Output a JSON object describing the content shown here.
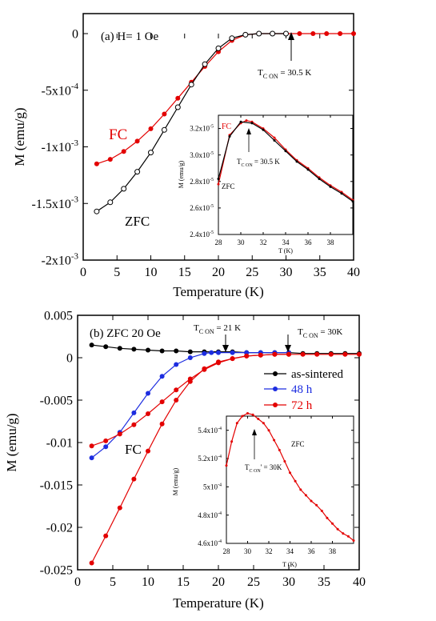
{
  "chart_data": [
    {
      "type": "line",
      "panel": "a",
      "title": "(a) H= 1 Oe",
      "xlabel": "Temperature (K)",
      "ylabel": "M (emu/g)",
      "xlim": [
        0,
        40
      ],
      "ylim": [
        -0.002,
        0
      ],
      "xticks": [
        "0",
        "5",
        "10",
        "15",
        "20",
        "25",
        "30",
        "35",
        "40"
      ],
      "yticks": [
        {
          "mant": "0",
          "exp": ""
        },
        {
          "mant": "-5x10",
          "exp": "-4"
        },
        {
          "mant": "-1x10",
          "exp": "-3"
        },
        {
          "mant": "-1.5x10",
          "exp": "-3"
        },
        {
          "mant": "-2x10",
          "exp": "-3"
        }
      ],
      "ytick_values": [
        0,
        -0.0005,
        -0.001,
        -0.0015,
        -0.002
      ],
      "annotations": {
        "tc": "T",
        "tc_sub": "C ON",
        "tc_val": " = 30.5 K",
        "fc": "FC",
        "zfc": "ZFC"
      },
      "series": [
        {
          "name": "FC",
          "color": "#e30000",
          "marker": "filled",
          "x": [
            2,
            4,
            6,
            8,
            10,
            12,
            14,
            16,
            18,
            20,
            22,
            24,
            26,
            28,
            30,
            32,
            34,
            36,
            38,
            40
          ],
          "y": [
            -0.00115,
            -0.00111,
            -0.00104,
            -0.00095,
            -0.00084,
            -0.00071,
            -0.00057,
            -0.00043,
            -0.00029,
            -0.00016,
            -6e-05,
            -1e-05,
            0,
            0,
            0,
            0,
            0,
            0,
            0,
            0
          ]
        },
        {
          "name": "ZFC",
          "color": "#000000",
          "marker": "open",
          "x": [
            2,
            4,
            6,
            8,
            10,
            12,
            14,
            16,
            18,
            20,
            22,
            24,
            26,
            28,
            30
          ],
          "y": [
            -0.00157,
            -0.00149,
            -0.00137,
            -0.00122,
            -0.00105,
            -0.00085,
            -0.00065,
            -0.00045,
            -0.00027,
            -0.00013,
            -4e-05,
            -1e-05,
            0,
            0,
            0
          ]
        }
      ],
      "inset": {
        "xlabel": "T (K)",
        "ylabel": "M (emu/g)",
        "xlim": [
          28,
          40
        ],
        "ylim": [
          2.4e-05,
          3.3e-05
        ],
        "xticks": [
          "28",
          "30",
          "32",
          "34",
          "36",
          "38"
        ],
        "yticks": [
          {
            "mant": "3.2x10",
            "exp": "-5"
          },
          {
            "mant": "3.0x10",
            "exp": "-5"
          },
          {
            "mant": "2.8x10",
            "exp": "-5"
          },
          {
            "mant": "2.6x10",
            "exp": "-5"
          },
          {
            "mant": "2.4x10",
            "exp": "-5"
          }
        ],
        "ytick_values": [
          3.2e-05,
          3e-05,
          2.8e-05,
          2.6e-05,
          2.4e-05
        ],
        "labels": {
          "fc": "FC",
          "zfc": "ZFC",
          "tc": "T",
          "tc_sub": "C ON",
          "tc_val": " = 30.5 K"
        },
        "series": [
          {
            "name": "FC",
            "color": "#e30000",
            "x": [
              28,
              29,
              30,
              30.5,
              31,
              32,
              33,
              34,
              35,
              36,
              37,
              38,
              39,
              40
            ],
            "y": [
              2.78e-05,
              3.15e-05,
              3.24e-05,
              3.26e-05,
              3.25e-05,
              3.2e-05,
              3.13e-05,
              3.04e-05,
              2.96e-05,
              2.9e-05,
              2.83e-05,
              2.77e-05,
              2.72e-05,
              2.66e-05
            ]
          },
          {
            "name": "ZFC",
            "color": "#000000",
            "x": [
              28,
              29,
              30,
              31,
              32,
              33,
              34,
              35,
              36,
              37,
              38,
              39,
              40
            ],
            "y": [
              2.82e-05,
              3.14e-05,
              3.25e-05,
              3.24e-05,
              3.19e-05,
              3.11e-05,
              3.03e-05,
              2.95e-05,
              2.89e-05,
              2.82e-05,
              2.76e-05,
              2.71e-05,
              2.65e-05
            ]
          }
        ]
      }
    },
    {
      "type": "line",
      "panel": "b",
      "title": "(b) ZFC 20 Oe",
      "xlabel": "Temperature (K)",
      "ylabel": "M (emu/g)",
      "xlim": [
        0,
        40
      ],
      "ylim": [
        -0.025,
        0.005
      ],
      "xticks": [
        "0",
        "5",
        "10",
        "15",
        "20",
        "25",
        "30",
        "35",
        "40"
      ],
      "yticks": [
        "0.005",
        "0",
        "-0.005",
        "-0.01",
        "-0.015",
        "-0.02",
        "-0.025"
      ],
      "ytick_values": [
        0.005,
        0,
        -0.005,
        -0.01,
        -0.015,
        -0.02,
        -0.025
      ],
      "annotations": {
        "tc21": "T",
        "tc21_sub": "C ON",
        "tc21_val": " = 21 K",
        "tc30": "T",
        "tc30_sub": "C ON",
        "tc30_val": " = 30K",
        "fc": "FC"
      },
      "legend": [
        "as-sintered",
        "48 h",
        "72 h"
      ],
      "series": [
        {
          "name": "as-sintered",
          "color": "#000000",
          "x": [
            2,
            4,
            6,
            8,
            10,
            12,
            14,
            16,
            18,
            20,
            22,
            24,
            26,
            28,
            30,
            32,
            34,
            36,
            38,
            40
          ],
          "y": [
            0.0015,
            0.0013,
            0.0011,
            0.001,
            0.0009,
            0.0008,
            0.0008,
            0.0007,
            0.0007,
            0.0007,
            0.0007,
            0.0006,
            0.0006,
            0.0006,
            0.0006,
            0.0005,
            0.0005,
            0.0005,
            0.0005,
            0.0005
          ]
        },
        {
          "name": "48 h",
          "color": "#1d2de0",
          "x": [
            2,
            4,
            6,
            8,
            10,
            12,
            14,
            16,
            18,
            19,
            20,
            22,
            24,
            26,
            28,
            30
          ],
          "y": [
            -0.0118,
            -0.0105,
            -0.0088,
            -0.0065,
            -0.0042,
            -0.0022,
            -0.0008,
            0,
            0.0005,
            0.0006,
            0.0006,
            0.0006,
            0.0006,
            0.0006,
            0.0006,
            0.0006
          ]
        },
        {
          "name": "72 h (FC)",
          "color": "#e30000",
          "x": [
            2,
            4,
            6,
            8,
            10,
            12,
            14,
            16,
            18,
            20,
            22,
            24,
            26,
            28,
            30,
            32,
            34,
            36,
            38,
            40
          ],
          "y": [
            -0.0104,
            -0.0098,
            -0.009,
            -0.0079,
            -0.0066,
            -0.0052,
            -0.0038,
            -0.0025,
            -0.0014,
            -0.0006,
            -0.0001,
            0.0002,
            0.0003,
            0.0004,
            0.0004,
            0.0004,
            0.0004,
            0.0004,
            0.0004,
            0.0004
          ]
        },
        {
          "name": "72 h (ZFC)",
          "color": "#e30000",
          "x": [
            2,
            4,
            6,
            8,
            10,
            12,
            14,
            16,
            18,
            20,
            22,
            24,
            26,
            28,
            30
          ],
          "y": [
            -0.0242,
            -0.021,
            -0.0177,
            -0.0143,
            -0.011,
            -0.0078,
            -0.005,
            -0.0028,
            -0.0013,
            -0.0005,
            -0.0001,
            0.0002,
            0.0003,
            0.0004,
            0.0004
          ]
        }
      ],
      "inset": {
        "xlabel": "T (K)",
        "ylabel": "M (emu/g)",
        "xlim": [
          28,
          40
        ],
        "ylim": [
          0.00046,
          0.00055
        ],
        "xticks": [
          "28",
          "30",
          "32",
          "34",
          "36",
          "38"
        ],
        "yticks": [
          {
            "mant": "5.4x10",
            "exp": "-4"
          },
          {
            "mant": "5.2x10",
            "exp": "-4"
          },
          {
            "mant": "5x10",
            "exp": "-4"
          },
          {
            "mant": "4.8x10",
            "exp": "-4"
          },
          {
            "mant": "4.6x10",
            "exp": "-4"
          }
        ],
        "ytick_values": [
          0.00054,
          0.00052,
          0.0005,
          0.00048,
          0.00046
        ],
        "labels": {
          "zfc": "ZFC",
          "tc": "T",
          "tc_sub": "C ON",
          "tc_val": "' = 30K"
        },
        "series": [
          {
            "name": "ZFC",
            "color": "#e30000",
            "x": [
              28,
              28.5,
              29,
              29.5,
              30,
              30.5,
              31,
              31.5,
              32,
              32.5,
              33,
              33.5,
              34,
              34.5,
              35,
              35.5,
              36,
              36.5,
              37,
              37.5,
              38,
              38.5,
              39,
              39.5,
              40
            ],
            "y": [
              0.000515,
              0.000532,
              0.000545,
              0.00055,
              0.000552,
              0.000551,
              0.000548,
              0.000545,
              0.00054,
              0.000533,
              0.000526,
              0.000518,
              0.00051,
              0.000504,
              0.000498,
              0.000494,
              0.00049,
              0.000487,
              0.000483,
              0.000478,
              0.000474,
              0.00047,
              0.000467,
              0.000465,
              0.000462
            ]
          }
        ]
      }
    }
  ]
}
